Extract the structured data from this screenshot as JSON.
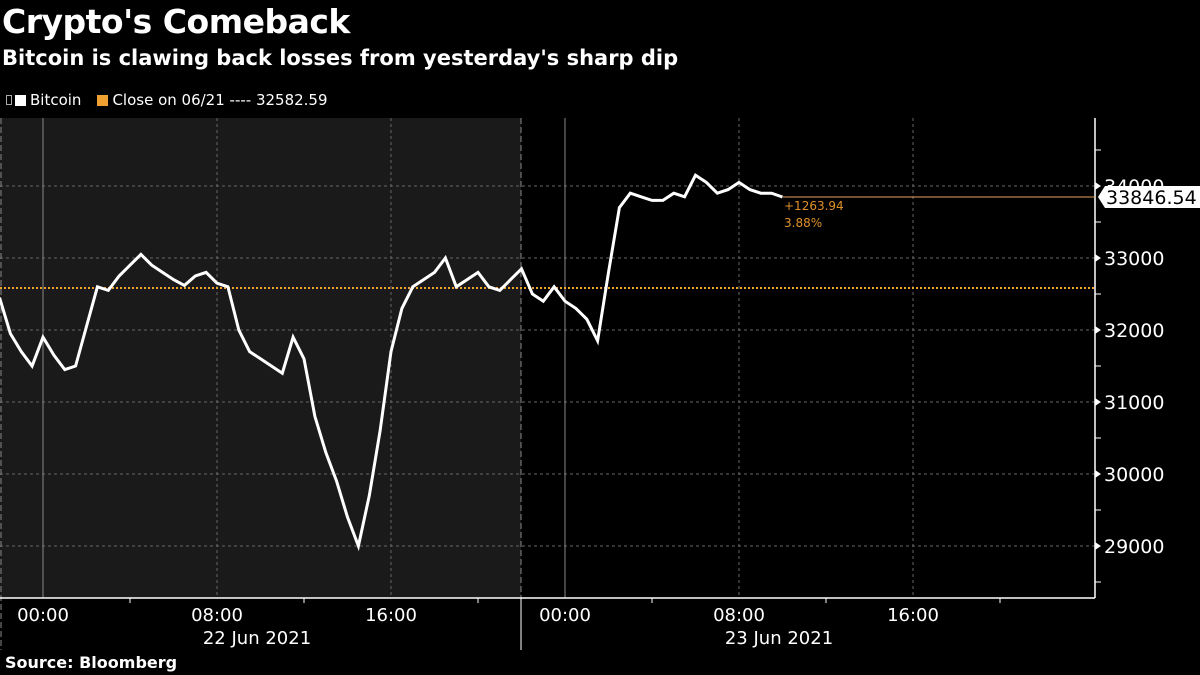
{
  "header": {
    "title": "Crypto's Comeback",
    "subtitle": "Bitcoin is clawing back losses from yesterday's sharp dip"
  },
  "legend": [
    {
      "label": "Bitcoin",
      "color": "#ffffff"
    },
    {
      "label": "Close on 06/21 ---- 32582.59",
      "color": "#f0a030"
    }
  ],
  "annotation": {
    "last_value": "33846.54",
    "change": "+1263.94",
    "change_pct": "3.88%"
  },
  "x_axis": {
    "ticks": [
      "00:00",
      "08:00",
      "16:00",
      "00:00",
      "08:00",
      "16:00"
    ],
    "dates": [
      "22 Jun 2021",
      "23 Jun 2021"
    ]
  },
  "y_axis": {
    "ticks": [
      "34000",
      "33000",
      "32000",
      "31000",
      "30000",
      "29000"
    ]
  },
  "footer": {
    "source": "Source: Bloomberg"
  },
  "chart_data": {
    "type": "line",
    "title": "Crypto's Comeback",
    "subtitle": "Bitcoin is clawing back losses from yesterday's sharp dip",
    "xlabel": "",
    "ylabel": "",
    "ylim": [
      28400,
      34900
    ],
    "x_ticks": [
      "22 Jun 00:00",
      "22 Jun 08:00",
      "22 Jun 16:00",
      "23 Jun 00:00",
      "23 Jun 08:00",
      "23 Jun 16:00"
    ],
    "y_ticks": [
      29000,
      30000,
      31000,
      32000,
      33000,
      34000
    ],
    "reference_line": {
      "name": "Close on 06/21",
      "value": 32582.59
    },
    "last_value": 33846.54,
    "change": 1263.94,
    "change_pct": 3.88,
    "series": [
      {
        "name": "Bitcoin",
        "x_hours_from_22jun_0000": [
          -2,
          -1.5,
          -1,
          -0.5,
          0,
          0.5,
          1,
          1.5,
          2,
          2.5,
          3,
          3.5,
          4,
          4.5,
          5,
          5.5,
          6,
          6.5,
          7,
          7.5,
          8,
          8.5,
          9,
          9.5,
          10,
          10.5,
          11,
          11.5,
          12,
          12.5,
          13,
          13.5,
          14,
          14.5,
          15,
          15.5,
          16,
          16.5,
          17,
          17.5,
          18,
          18.5,
          19,
          19.5,
          20,
          20.5,
          21,
          21.5,
          22,
          22.5,
          23,
          23.5,
          24,
          24.5,
          25,
          25.5,
          26,
          26.5,
          27,
          27.5,
          28,
          28.5,
          29,
          29.5,
          30,
          30.5,
          31,
          31.5,
          32,
          32.5,
          33,
          33.5,
          34
        ],
        "values": [
          32450,
          31950,
          31700,
          31500,
          31900,
          31650,
          31450,
          31500,
          32050,
          32600,
          32550,
          32750,
          32900,
          33050,
          32900,
          32800,
          32700,
          32620,
          32750,
          32800,
          32650,
          32600,
          32000,
          31700,
          31600,
          31500,
          31400,
          31900,
          31600,
          30800,
          30300,
          29900,
          29400,
          29000,
          29700,
          30600,
          31700,
          32300,
          32600,
          32700,
          32800,
          33000,
          32600,
          32700,
          32800,
          32600,
          32550,
          32700,
          32850,
          32500,
          32400,
          32600,
          32400,
          32300,
          32150,
          31850,
          32800,
          33700,
          33900,
          33850,
          33800,
          33800,
          33900,
          33850,
          34150,
          34050,
          33900,
          33950,
          34050,
          33950,
          33900,
          33900,
          33846.54
        ]
      }
    ]
  }
}
